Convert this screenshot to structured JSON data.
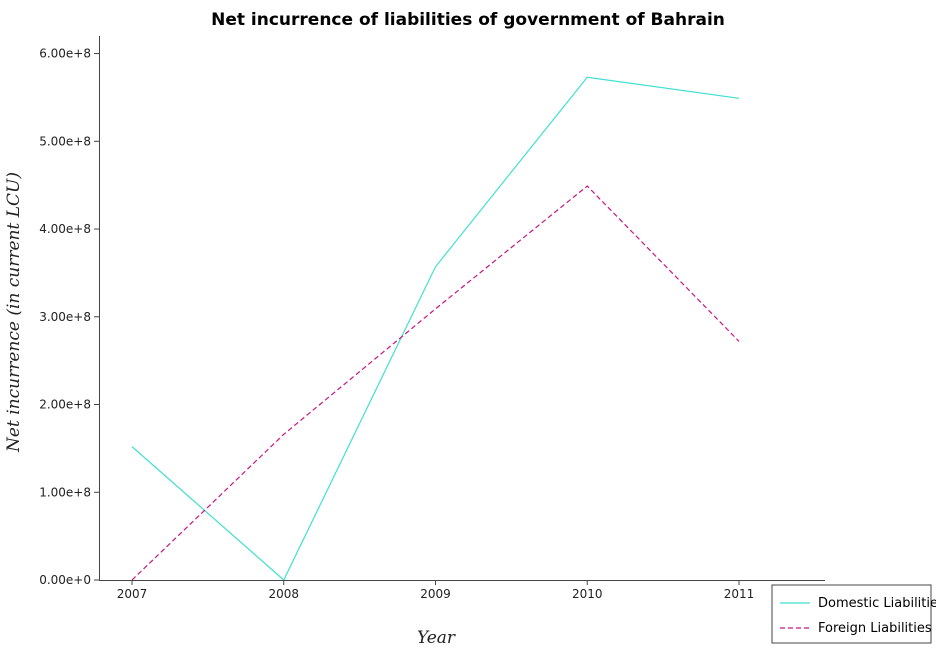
{
  "chart_data": {
    "type": "line",
    "title": "Net incurrence of liabilities of government of Bahrain",
    "xlabel": "Year",
    "ylabel": "Net incurrence (in current LCU)",
    "categories": [
      "2007",
      "2008",
      "2009",
      "2010",
      "2011"
    ],
    "yticks": [
      {
        "value": 0,
        "label": "0.00e+0"
      },
      {
        "value": 100000000,
        "label": "1.00e+8"
      },
      {
        "value": 200000000,
        "label": "2.00e+8"
      },
      {
        "value": 300000000,
        "label": "3.00e+8"
      },
      {
        "value": 400000000,
        "label": "4.00e+8"
      },
      {
        "value": 500000000,
        "label": "5.00e+8"
      },
      {
        "value": 600000000,
        "label": "6.00e+8"
      }
    ],
    "ylim": [
      0,
      620000000
    ],
    "grid": false,
    "legend_position": "bottom-right",
    "series": [
      {
        "name": "Domestic Liabilities",
        "color": "#40e0d0",
        "dash": "solid",
        "values": [
          152000000,
          0,
          357000000,
          573000000,
          549000000
        ]
      },
      {
        "name": "Foreign Liabilities",
        "color": "#c71585",
        "dash": "dashed",
        "values": [
          0,
          166000000,
          309000000,
          449000000,
          272000000
        ]
      }
    ]
  }
}
